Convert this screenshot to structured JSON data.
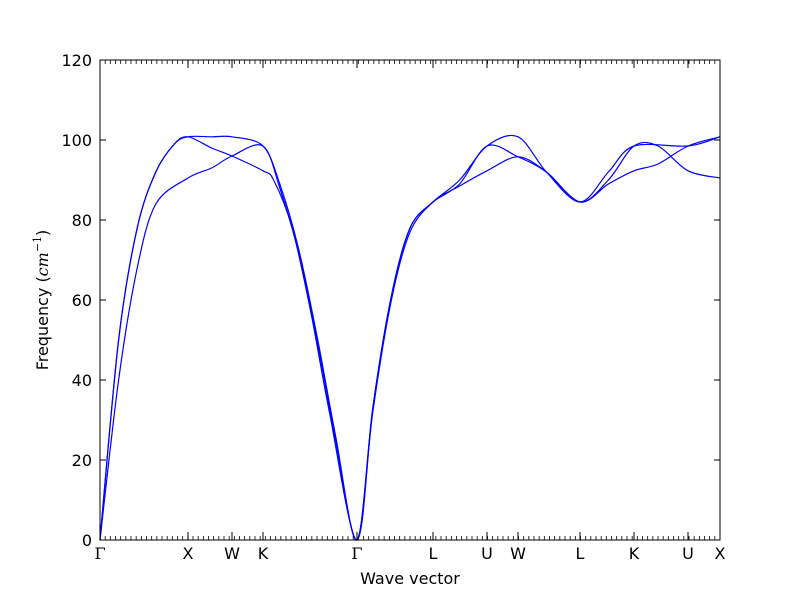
{
  "chart_data": {
    "type": "line",
    "title": "",
    "xlabel": "Wave vector",
    "ylabel_text": "Frequency (",
    "ylabel_unit": "cm",
    "ylabel_exponent": "−1",
    "ylabel_close": ")",
    "ylim": [
      0,
      120
    ],
    "xlim": [
      0,
      1
    ],
    "yticks": [
      0,
      20,
      40,
      60,
      80,
      100,
      120
    ],
    "xticks": [
      {
        "label": "Γ",
        "x": 0.0
      },
      {
        "label": "X",
        "x": 0.1419
      },
      {
        "label": "W",
        "x": 0.2129
      },
      {
        "label": "K",
        "x": 0.2629
      },
      {
        "label": "Γ",
        "x": 0.4145
      },
      {
        "label": "L",
        "x": 0.5371
      },
      {
        "label": "U",
        "x": 0.6242
      },
      {
        "label": "W",
        "x": 0.6742
      },
      {
        "label": "L",
        "x": 0.7742
      },
      {
        "label": "K",
        "x": 0.8613
      },
      {
        "label": "U",
        "x": 0.9484
      },
      {
        "label": "X",
        "x": 1.0
      }
    ],
    "line_color": "#0000ff",
    "grid": false,
    "series": [
      {
        "values": [
          [
            0,
            0
          ],
          [
            0.03,
            40
          ],
          [
            0.06,
            68
          ],
          [
            0.09,
            84
          ],
          [
            0.1419,
            90.5
          ],
          [
            0.18,
            93
          ],
          [
            0.2129,
            96
          ],
          [
            0.2629,
            98.5
          ],
          [
            0.29,
            88
          ],
          [
            0.32,
            72
          ],
          [
            0.35,
            50
          ],
          [
            0.38,
            25
          ],
          [
            0.4145,
            0
          ],
          [
            0.44,
            32
          ],
          [
            0.47,
            60
          ],
          [
            0.5,
            77
          ],
          [
            0.5371,
            84.5
          ],
          [
            0.58,
            88.5
          ],
          [
            0.6242,
            92.3
          ],
          [
            0.6742,
            95.8
          ],
          [
            0.72,
            92
          ],
          [
            0.7742,
            84.5
          ],
          [
            0.82,
            89
          ],
          [
            0.8613,
            92.3
          ],
          [
            0.9,
            94
          ],
          [
            0.9484,
            98.5
          ],
          [
            1.0,
            100.8
          ]
        ]
      },
      {
        "values": [
          [
            0,
            0
          ],
          [
            0.03,
            50
          ],
          [
            0.06,
            78
          ],
          [
            0.09,
            92
          ],
          [
            0.12,
            99
          ],
          [
            0.1419,
            100.8
          ],
          [
            0.18,
            100.8
          ],
          [
            0.2129,
            100.8
          ],
          [
            0.2629,
            98.5
          ],
          [
            0.29,
            89
          ],
          [
            0.32,
            73
          ],
          [
            0.35,
            51
          ],
          [
            0.38,
            26
          ],
          [
            0.4145,
            0
          ],
          [
            0.44,
            33
          ],
          [
            0.47,
            61
          ],
          [
            0.5,
            78
          ],
          [
            0.5371,
            84.5
          ],
          [
            0.58,
            90
          ],
          [
            0.6242,
            98.5
          ],
          [
            0.6742,
            100.8
          ],
          [
            0.72,
            92
          ],
          [
            0.7742,
            84.5
          ],
          [
            0.82,
            92
          ],
          [
            0.8613,
            98.5
          ],
          [
            0.9484,
            98.5
          ],
          [
            1.0,
            100.8
          ]
        ]
      },
      {
        "values": [
          [
            0,
            0
          ],
          [
            0.03,
            50
          ],
          [
            0.06,
            78
          ],
          [
            0.09,
            92
          ],
          [
            0.12,
            99
          ],
          [
            0.1419,
            100.8
          ],
          [
            0.18,
            98
          ],
          [
            0.2129,
            96
          ],
          [
            0.2629,
            92.3
          ],
          [
            0.28,
            90
          ],
          [
            0.31,
            78
          ],
          [
            0.34,
            57
          ],
          [
            0.37,
            32
          ],
          [
            0.4145,
            0
          ],
          [
            0.44,
            33
          ],
          [
            0.47,
            61
          ],
          [
            0.5,
            78
          ],
          [
            0.5371,
            84.5
          ],
          [
            0.58,
            89
          ],
          [
            0.6242,
            98.5
          ],
          [
            0.6742,
            95.8
          ],
          [
            0.72,
            92
          ],
          [
            0.7742,
            84.5
          ],
          [
            0.82,
            90
          ],
          [
            0.8613,
            98.5
          ],
          [
            0.9,
            98.5
          ],
          [
            0.9484,
            92.3
          ],
          [
            1.0,
            90.5
          ]
        ]
      }
    ]
  }
}
